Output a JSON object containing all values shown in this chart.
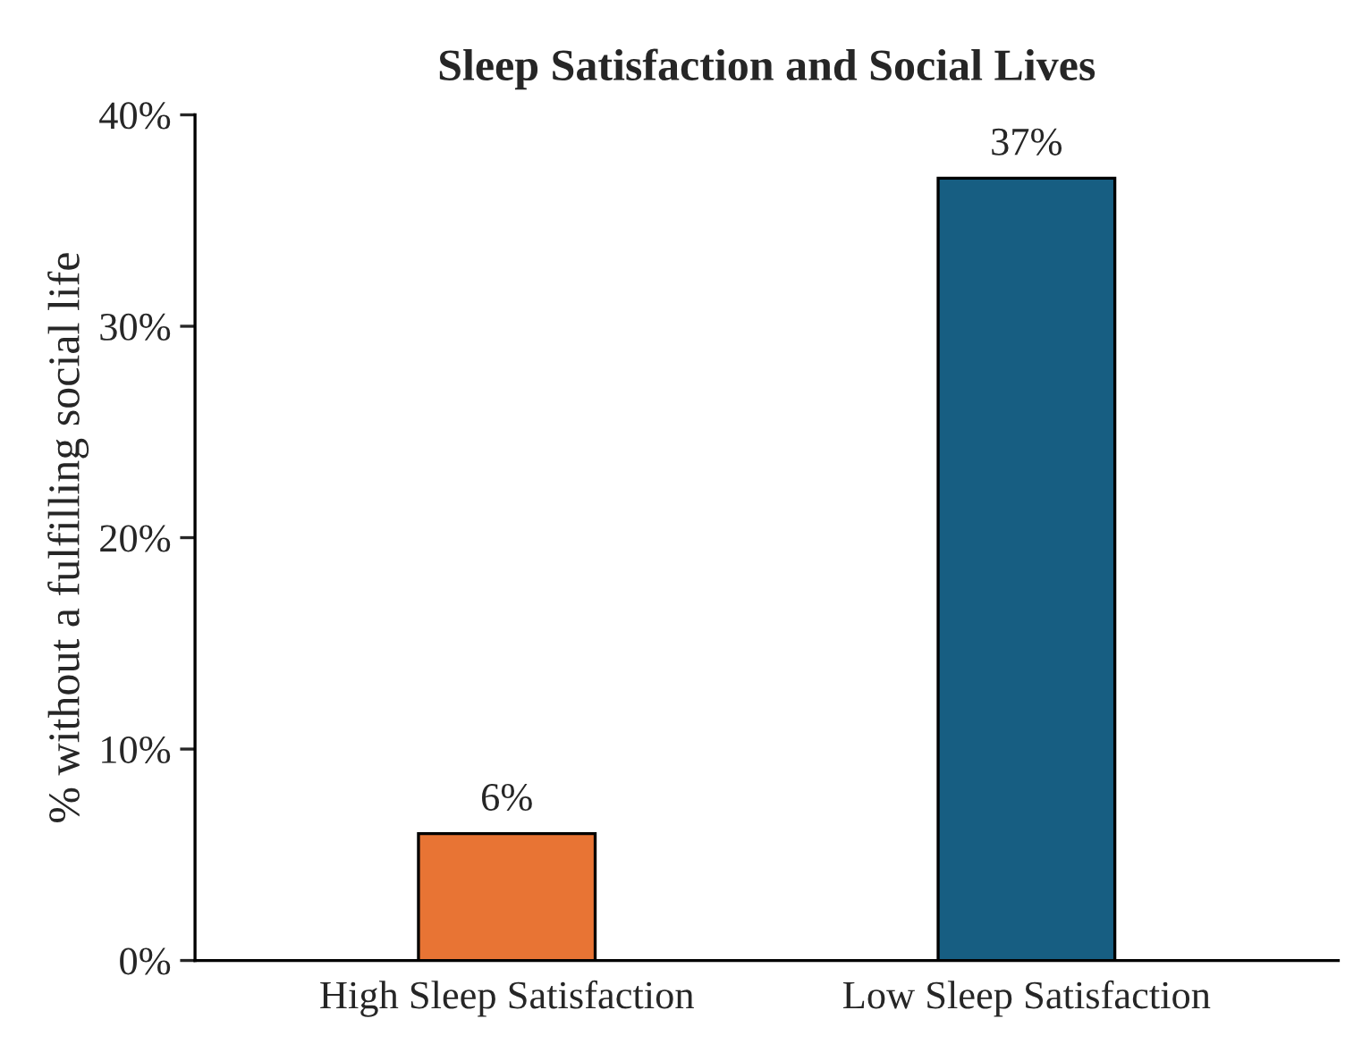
{
  "chart_data": {
    "type": "bar",
    "title": "Sleep Satisfaction and Social Lives",
    "ylabel": "% without a fulfilling social life",
    "categories": [
      "High Sleep Satisfaction",
      "Low Sleep Satisfaction"
    ],
    "values": [
      6,
      37
    ],
    "colors": [
      "#e87434",
      "#175e82"
    ],
    "value_labels": [
      "6%",
      "37%"
    ],
    "ylim": [
      0,
      40
    ],
    "yticks": [
      {
        "value": 0,
        "label": "0%"
      },
      {
        "value": 10,
        "label": "10%"
      },
      {
        "value": 20,
        "label": "20%"
      },
      {
        "value": 30,
        "label": "30%"
      },
      {
        "value": 40,
        "label": "40%"
      }
    ],
    "grid": false,
    "legend": false
  }
}
